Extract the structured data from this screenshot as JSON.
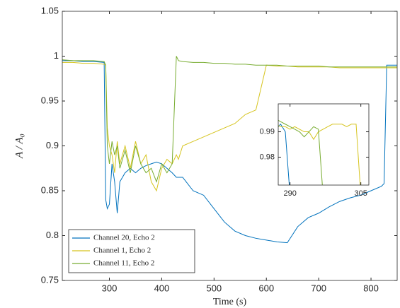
{
  "chart_data": [
    {
      "type": "line",
      "xlabel": "Time (s)",
      "ylabel": "A / A₀",
      "x": [
        210,
        230,
        250,
        270,
        290,
        293,
        296,
        300,
        305,
        310,
        315,
        320,
        330,
        340,
        350,
        360,
        370,
        380,
        390,
        400,
        410,
        420,
        428,
        432,
        440,
        460,
        480,
        500,
        520,
        540,
        560,
        580,
        600,
        620,
        640,
        660,
        680,
        700,
        720,
        740,
        760,
        780,
        800,
        820,
        825,
        830,
        850
      ],
      "xlim": [
        210,
        850
      ],
      "ylim": [
        0.75,
        1.05
      ],
      "xticks": [
        300,
        400,
        500,
        600,
        700,
        800
      ],
      "yticks": [
        0.75,
        0.8,
        0.85,
        0.9,
        0.95,
        1,
        1.05
      ],
      "legend": "lower left",
      "series": [
        {
          "name": "Channel 20, Echo 2",
          "color": "#0072bd",
          "values": [
            0.995,
            0.995,
            0.994,
            0.994,
            0.993,
            0.84,
            0.83,
            0.835,
            0.88,
            0.86,
            0.825,
            0.86,
            0.87,
            0.875,
            0.87,
            0.875,
            0.878,
            0.88,
            0.882,
            0.88,
            0.875,
            0.87,
            0.865,
            0.865,
            0.865,
            0.85,
            0.845,
            0.83,
            0.815,
            0.805,
            0.8,
            0.797,
            0.795,
            0.793,
            0.792,
            0.81,
            0.82,
            0.825,
            0.832,
            0.838,
            0.842,
            0.845,
            0.85,
            0.855,
            0.858,
            0.99,
            0.99
          ]
        },
        {
          "name": "Channel 1, Echo 2",
          "color": "#d6c41e",
          "values": [
            0.993,
            0.993,
            0.992,
            0.992,
            0.991,
            0.99,
            0.92,
            0.9,
            0.89,
            0.87,
            0.905,
            0.88,
            0.9,
            0.875,
            0.905,
            0.88,
            0.89,
            0.86,
            0.85,
            0.875,
            0.885,
            0.88,
            0.89,
            0.885,
            0.9,
            0.905,
            0.91,
            0.915,
            0.92,
            0.925,
            0.935,
            0.94,
            0.99,
            0.989,
            0.989,
            0.988,
            0.988,
            0.988,
            0.988,
            0.987,
            0.987,
            0.987,
            0.987,
            0.987,
            0.987,
            0.987,
            0.987
          ]
        },
        {
          "name": "Channel 11, Echo 2",
          "color": "#77ac30",
          "values": [
            0.996,
            0.995,
            0.995,
            0.995,
            0.994,
            0.99,
            0.9,
            0.88,
            0.905,
            0.89,
            0.9,
            0.875,
            0.895,
            0.87,
            0.9,
            0.88,
            0.87,
            0.875,
            0.86,
            0.88,
            0.87,
            0.88,
            1.0,
            0.995,
            0.994,
            0.993,
            0.993,
            0.992,
            0.992,
            0.991,
            0.991,
            0.99,
            0.99,
            0.99,
            0.989,
            0.989,
            0.989,
            0.989,
            0.988,
            0.988,
            0.988,
            0.988,
            0.988,
            0.988,
            0.988,
            0.988,
            0.988
          ]
        }
      ]
    },
    {
      "type": "line",
      "x": [
        287,
        288,
        289,
        290,
        291,
        292,
        293,
        294,
        295,
        296,
        297,
        298,
        299,
        300,
        301,
        302,
        303,
        304,
        305,
        306,
        307
      ],
      "xlim": [
        287.5,
        306.7
      ],
      "ylim": [
        0.969,
        1.001
      ],
      "xticks": [
        290,
        305
      ],
      "yticks": [
        0.98,
        0.99
      ],
      "series": [
        {
          "name": "Channel 20, Echo 2",
          "color": "#0072bd",
          "values": [
            0.991,
            0.993,
            0.99,
            0.965,
            null,
            null,
            null,
            null,
            null,
            null,
            null,
            null,
            null,
            null,
            null,
            null,
            null,
            null,
            null,
            null,
            null
          ]
        },
        {
          "name": "Channel 1, Echo 2",
          "color": "#d6c41e",
          "values": [
            0.993,
            0.992,
            0.992,
            0.991,
            0.992,
            0.991,
            0.99,
            0.99,
            0.987,
            0.99,
            0.991,
            0.992,
            0.993,
            0.993,
            0.993,
            0.992,
            0.993,
            0.993,
            0.965,
            null,
            null
          ]
        },
        {
          "name": "Channel 11, Echo 2",
          "color": "#77ac30",
          "values": [
            0.995,
            0.994,
            0.993,
            0.992,
            0.991,
            0.99,
            0.988,
            0.99,
            0.992,
            0.991,
            0.965,
            null,
            null,
            null,
            null,
            null,
            null,
            null,
            null,
            null,
            null
          ]
        }
      ]
    }
  ]
}
